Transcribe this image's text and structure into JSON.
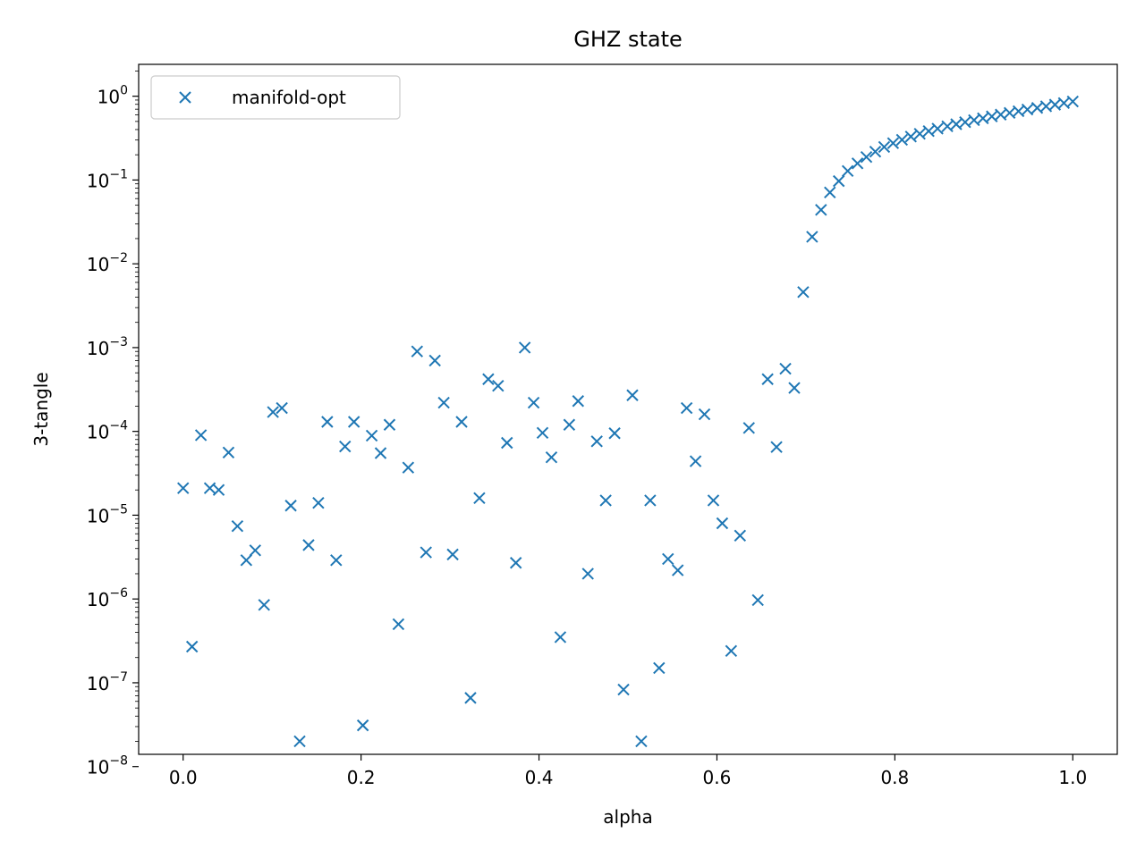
{
  "chart_data": {
    "type": "scatter",
    "title": "GHZ state",
    "xlabel": "alpha",
    "ylabel": "3-tangle",
    "xlim": [
      -0.05,
      1.05
    ],
    "ylim": [
      1.4e-08,
      2.4
    ],
    "yscale": "log",
    "grid": false,
    "legend_position": "top-left",
    "marker": "x",
    "color": "#1f77b4",
    "x_ticks": [
      0.0,
      0.2,
      0.4,
      0.6,
      0.8,
      1.0
    ],
    "x_tick_labels": [
      "0.0",
      "0.2",
      "0.4",
      "0.6",
      "0.8",
      "1.0"
    ],
    "y_ticks": [
      1e-08,
      1e-07,
      1e-06,
      1e-05,
      0.0001,
      0.001,
      0.01,
      0.1,
      1
    ],
    "y_tick_base": "10",
    "y_tick_exponents": [
      "−8",
      "−7",
      "−6",
      "−5",
      "−4",
      "−3",
      "−2",
      "−1",
      "0"
    ],
    "series": [
      {
        "name": "manifold-opt",
        "points": [
          [
            0.0,
            2.1e-05
          ],
          [
            0.01,
            2.7e-07
          ],
          [
            0.02,
            9e-05
          ],
          [
            0.03,
            2.1e-05
          ],
          [
            0.04,
            2e-05
          ],
          [
            0.051,
            5.6e-05
          ],
          [
            0.061,
            7.4e-06
          ],
          [
            0.071,
            2.9e-06
          ],
          [
            0.081,
            3.8e-06
          ],
          [
            0.091,
            8.5e-07
          ],
          [
            0.101,
            0.00017
          ],
          [
            0.111,
            0.00019
          ],
          [
            0.121,
            1.3e-05
          ],
          [
            0.131,
            2e-08
          ],
          [
            0.141,
            4.4e-06
          ],
          [
            0.152,
            1.4e-05
          ],
          [
            0.162,
            0.00013
          ],
          [
            0.172,
            2.9e-06
          ],
          [
            0.182,
            6.6e-05
          ],
          [
            0.192,
            0.00013
          ],
          [
            0.202,
            3.1e-08
          ],
          [
            0.212,
            8.9e-05
          ],
          [
            0.222,
            5.5e-05
          ],
          [
            0.232,
            0.00012
          ],
          [
            0.242,
            5e-07
          ],
          [
            0.253,
            3.7e-05
          ],
          [
            0.263,
            0.0009
          ],
          [
            0.273,
            3.6e-06
          ],
          [
            0.283,
            0.0007
          ],
          [
            0.293,
            0.00022
          ],
          [
            0.303,
            3.4e-06
          ],
          [
            0.313,
            0.00013
          ],
          [
            0.323,
            6.6e-08
          ],
          [
            0.333,
            1.6e-05
          ],
          [
            0.343,
            0.00042
          ],
          [
            0.354,
            0.00035
          ],
          [
            0.364,
            7.3e-05
          ],
          [
            0.374,
            2.7e-06
          ],
          [
            0.384,
            0.001
          ],
          [
            0.394,
            0.00022
          ],
          [
            0.404,
            9.6e-05
          ],
          [
            0.414,
            4.9e-05
          ],
          [
            0.424,
            3.5e-07
          ],
          [
            0.434,
            0.00012
          ],
          [
            0.444,
            0.00023
          ],
          [
            0.455,
            2e-06
          ],
          [
            0.465,
            7.6e-05
          ],
          [
            0.475,
            1.5e-05
          ],
          [
            0.485,
            9.5e-05
          ],
          [
            0.495,
            8.3e-08
          ],
          [
            0.505,
            0.00027
          ],
          [
            0.515,
            2e-08
          ],
          [
            0.525,
            1.5e-05
          ],
          [
            0.535,
            1.5e-07
          ],
          [
            0.545,
            3e-06
          ],
          [
            0.556,
            2.2e-06
          ],
          [
            0.566,
            0.00019
          ],
          [
            0.576,
            4.4e-05
          ],
          [
            0.586,
            0.00016
          ],
          [
            0.596,
            1.5e-05
          ],
          [
            0.606,
            8e-06
          ],
          [
            0.616,
            2.4e-07
          ],
          [
            0.626,
            5.7e-06
          ],
          [
            0.636,
            0.00011
          ],
          [
            0.646,
            9.7e-07
          ],
          [
            0.657,
            0.00042
          ],
          [
            0.667,
            6.5e-05
          ],
          [
            0.677,
            0.00056
          ],
          [
            0.687,
            0.00033
          ],
          [
            0.697,
            0.0046
          ],
          [
            0.707,
            0.021
          ],
          [
            0.717,
            0.044
          ],
          [
            0.727,
            0.071
          ],
          [
            0.737,
            0.097
          ],
          [
            0.747,
            0.128
          ],
          [
            0.758,
            0.158
          ],
          [
            0.768,
            0.188
          ],
          [
            0.778,
            0.218
          ],
          [
            0.788,
            0.248
          ],
          [
            0.798,
            0.275
          ],
          [
            0.808,
            0.302
          ],
          [
            0.818,
            0.33
          ],
          [
            0.828,
            0.356
          ],
          [
            0.838,
            0.383
          ],
          [
            0.848,
            0.41
          ],
          [
            0.859,
            0.437
          ],
          [
            0.869,
            0.463
          ],
          [
            0.879,
            0.49
          ],
          [
            0.889,
            0.518
          ],
          [
            0.899,
            0.545
          ],
          [
            0.909,
            0.574
          ],
          [
            0.919,
            0.603
          ],
          [
            0.929,
            0.632
          ],
          [
            0.939,
            0.662
          ],
          [
            0.949,
            0.693
          ],
          [
            0.96,
            0.725
          ],
          [
            0.97,
            0.758
          ],
          [
            0.98,
            0.792
          ],
          [
            0.99,
            0.828
          ],
          [
            1.0,
            0.865
          ]
        ]
      }
    ]
  }
}
